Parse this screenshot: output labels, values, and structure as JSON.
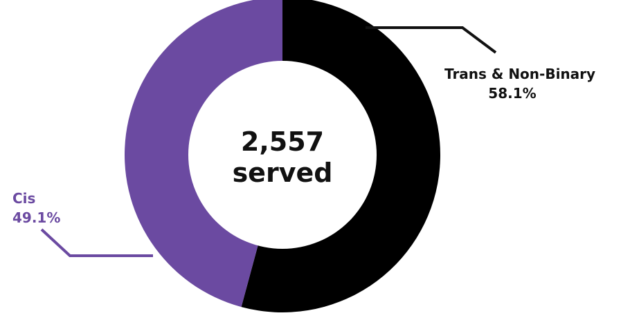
{
  "chart_data": {
    "type": "pie",
    "total_value": "2,557",
    "total_label": "served",
    "slices": [
      {
        "name": "Trans & Non-Binary",
        "value": 58.1,
        "label": "58.1%",
        "color": "#000000"
      },
      {
        "name": "Cis",
        "value": 49.1,
        "label": "49.1%",
        "color": "#6b4aa1"
      }
    ],
    "legend": "callouts"
  },
  "colors": {
    "background": "#ffffff",
    "cis_text": "#6b4aa1",
    "primary_text": "#111111"
  }
}
